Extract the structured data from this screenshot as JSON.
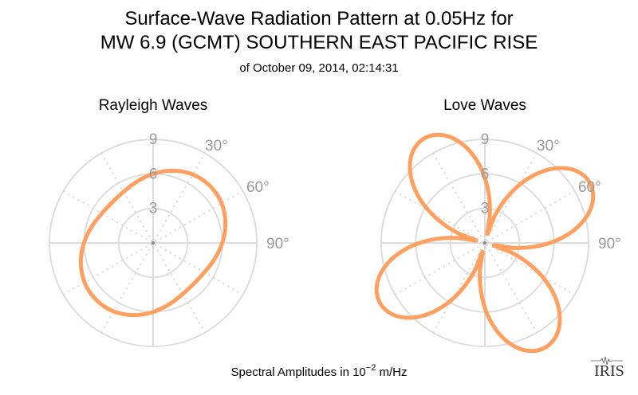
{
  "title_line1": "Surface-Wave Radiation Pattern at 0.05Hz for",
  "title_line2": "MW 6.9 (GCMT) SOUTHERN EAST PACIFIC RISE",
  "subtitle": "of October 09, 2014, 02:14:31",
  "footer_prefix": "Spectral Amplitudes in 10",
  "footer_exponent": "−2",
  "footer_suffix": " m/Hz",
  "logo_text": "IRIS",
  "colors": {
    "curve": "#FFA060",
    "grid": "#DDDDDD",
    "tick": "#999999"
  },
  "chart_data": [
    {
      "type": "polar-line",
      "title": "Rayleigh Waves",
      "radial_ticks": [
        "3",
        "6",
        "9"
      ],
      "radial_range": [
        0,
        9
      ],
      "angular_ticks": [
        "30°",
        "60°",
        "90°"
      ],
      "angle_step_deg": 10,
      "values": [
        6.0,
        6.34,
        6.64,
        6.87,
        6.98,
        6.98,
        6.87,
        6.64,
        6.34,
        6.0,
        5.66,
        5.36,
        5.13,
        5.02,
        5.02,
        5.13,
        5.36,
        5.66,
        6.0,
        6.34,
        6.64,
        6.87,
        6.98,
        6.98,
        6.87,
        6.64,
        6.34,
        6.0,
        5.66,
        5.36,
        5.13,
        5.02,
        5.02,
        5.13,
        5.36,
        5.66
      ]
    },
    {
      "type": "polar-line",
      "title": "Love Waves",
      "radial_ticks": [
        "3",
        "6",
        "9"
      ],
      "radial_range": [
        0,
        9
      ],
      "angular_ticks": [
        "30°",
        "60°",
        "90°"
      ],
      "angle_step_deg": 5,
      "values": [
        5.65,
        4.12,
        2.49,
        0.8,
        2.49,
        4.12,
        5.65,
        7.04,
        8.23,
        9.2,
        9.92,
        10.35,
        10.5,
        10.35,
        9.92,
        9.2,
        8.23,
        7.04,
        5.65,
        4.12,
        2.49,
        0.8,
        2.49,
        4.12,
        5.65,
        7.04,
        8.23,
        9.2,
        9.92,
        10.35,
        10.5,
        10.35,
        9.92,
        9.2,
        8.23,
        7.04,
        5.65,
        4.12,
        2.49,
        0.8,
        2.49,
        4.12,
        5.65,
        7.04,
        8.23,
        9.2,
        9.92,
        10.35,
        10.5,
        10.35,
        9.92,
        9.2,
        8.23,
        7.04,
        5.65,
        4.12,
        2.49,
        0.8,
        2.49,
        4.12,
        5.65,
        7.04,
        8.23,
        9.2,
        9.92,
        10.35,
        10.5,
        10.35,
        9.92,
        9.2,
        8.23,
        7.04
      ]
    }
  ]
}
